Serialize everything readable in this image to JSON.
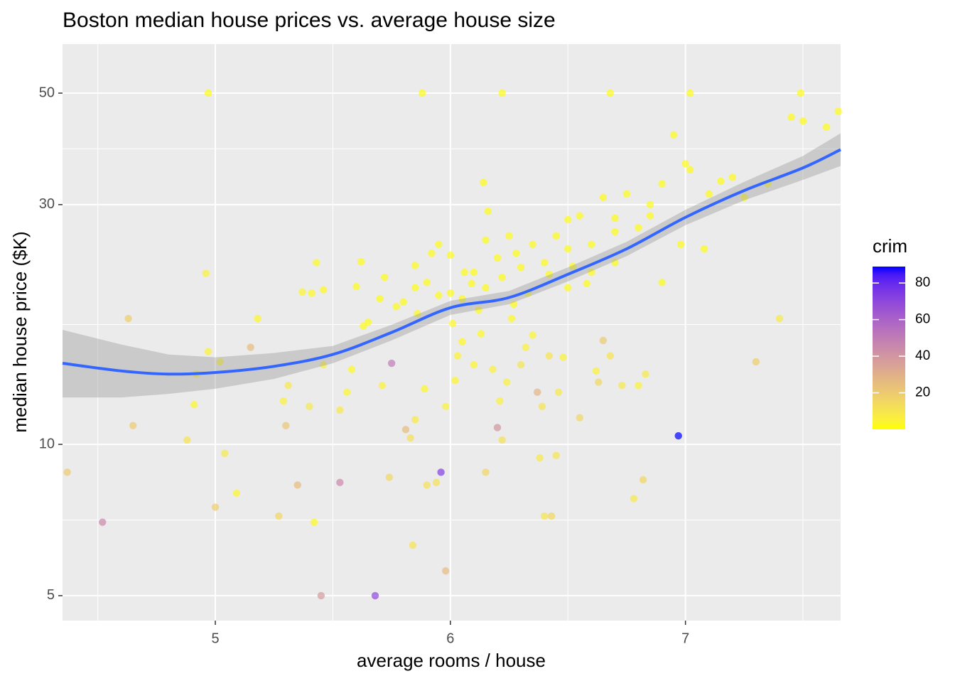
{
  "chart_data": {
    "type": "scatter",
    "title": "Boston median house prices vs. average house size",
    "x_label": "average rooms / house",
    "y_label": "median house price ($K)",
    "y_scale": "log",
    "xlim": [
      4.35,
      7.66
    ],
    "ylim": [
      4.46,
      62.6
    ],
    "xticks": [
      5,
      6,
      7
    ],
    "yticks": [
      5,
      10,
      30,
      50
    ],
    "grid": true,
    "x": [
      4.97,
      5.88,
      6.22,
      6.68,
      7.02,
      7.49,
      4.37,
      4.52,
      4.63,
      4.65,
      4.88,
      4.96,
      4.97,
      4.92,
      4.91,
      5.0,
      5.02,
      5.04,
      5.09,
      5.15,
      5.18,
      5.27,
      5.29,
      5.3,
      5.31,
      5.35,
      5.37,
      5.4,
      5.41,
      5.42,
      5.43,
      5.45,
      5.46,
      5.46,
      5.53,
      5.53,
      5.56,
      5.58,
      5.6,
      5.62,
      5.63,
      5.68,
      5.71,
      5.72,
      5.74,
      5.75,
      5.77,
      5.8,
      5.81,
      5.83,
      5.84,
      5.85,
      5.85,
      5.86,
      5.89,
      5.9,
      5.92,
      5.94,
      5.96,
      5.98,
      5.98,
      6.0,
      6.01,
      6.02,
      6.03,
      6.05,
      6.06,
      6.09,
      6.1,
      6.13,
      6.14,
      6.15,
      6.16,
      6.18,
      6.2,
      6.21,
      6.22,
      6.24,
      6.26,
      6.28,
      6.3,
      6.32,
      6.35,
      6.37,
      6.38,
      6.39,
      6.4,
      6.42,
      6.43,
      6.45,
      6.46,
      6.48,
      6.5,
      6.52,
      6.55,
      6.58,
      6.62,
      6.63,
      6.65,
      6.68,
      6.7,
      6.73,
      6.75,
      6.78,
      6.8,
      6.82,
      6.83,
      6.85,
      6.9,
      6.95,
      6.97,
      6.98,
      7.0,
      7.02,
      7.08,
      7.15,
      7.2,
      7.25,
      7.3,
      7.35,
      7.4,
      7.45,
      7.5,
      7.6,
      7.65,
      5.9,
      6.0,
      6.1,
      6.2,
      6.3,
      6.4,
      6.5,
      6.6,
      6.7,
      6.8,
      6.85,
      6.9,
      7.1,
      6.65,
      6.55,
      6.45,
      6.35,
      6.25,
      6.15,
      5.95,
      5.85,
      5.7,
      5.65,
      5.95,
      6.05,
      6.15,
      6.22,
      6.33,
      6.42,
      6.5,
      6.6,
      6.7,
      6.27,
      6.12
    ],
    "values": [
      50,
      50,
      50,
      50,
      50,
      50,
      8.8,
      7.0,
      17.8,
      10.9,
      10.2,
      21.9,
      15.3,
      13.8,
      12.0,
      7.5,
      14.6,
      9.6,
      8.0,
      15.6,
      17.8,
      7.2,
      12.2,
      10.9,
      13.1,
      8.3,
      20.1,
      11.9,
      20.0,
      7.0,
      23.0,
      5.0,
      20.3,
      14.4,
      8.4,
      11.7,
      12.7,
      14.1,
      20.6,
      23.1,
      17.2,
      5.0,
      13.1,
      21.5,
      8.6,
      14.5,
      18.8,
      19.2,
      10.7,
      10.3,
      6.3,
      11.2,
      22.7,
      18.2,
      12.9,
      8.3,
      24.0,
      8.4,
      8.8,
      5.6,
      11.9,
      23.8,
      17.4,
      13.4,
      15.0,
      16.0,
      22.0,
      20.9,
      14.4,
      16.6,
      33.2,
      8.8,
      29.1,
      14.1,
      10.8,
      12.2,
      10.2,
      13.3,
      17.8,
      24.0,
      14.4,
      15.6,
      16.5,
      12.7,
      9.4,
      11.9,
      7.2,
      15.0,
      7.2,
      9.5,
      12.7,
      14.9,
      28.0,
      22.6,
      11.3,
      20.9,
      14.0,
      13.3,
      16.1,
      15.0,
      28.2,
      13.1,
      31.5,
      7.8,
      13.1,
      8.5,
      13.8,
      28.5,
      21.0,
      41.3,
      10.4,
      25.0,
      36.2,
      35.2,
      24.5,
      33.4,
      34.0,
      31.0,
      14.6,
      33.0,
      17.8,
      44.8,
      44.0,
      42.8,
      46.0,
      21.0,
      20.0,
      22.0,
      23.5,
      22.5,
      23.0,
      24.5,
      25.0,
      26.5,
      27.0,
      30.0,
      33.0,
      31.5,
      31.0,
      28.5,
      26.0,
      25.0,
      26.0,
      25.5,
      25.0,
      20.5,
      19.5,
      17.5,
      19.8,
      19.5,
      20.5,
      21.5,
      20.0,
      21.8,
      20.5,
      22.0,
      23.0,
      19.0,
      18.5
    ],
    "color_values": [
      1,
      1,
      1,
      1,
      1,
      1,
      20,
      45,
      18,
      20,
      10,
      5,
      5,
      5,
      3,
      18,
      3,
      8,
      3,
      25,
      3,
      15,
      5,
      22,
      8,
      25,
      3,
      8,
      2,
      2,
      2,
      38,
      2,
      6,
      45,
      8,
      3,
      2,
      1,
      1,
      1,
      70,
      5,
      1,
      15,
      50,
      1,
      1,
      25,
      12,
      10,
      8,
      1,
      1,
      3,
      12,
      1,
      12,
      73,
      25,
      5,
      1,
      2,
      3,
      4,
      2,
      1,
      1,
      3,
      2,
      1,
      15,
      1,
      5,
      40,
      5,
      12,
      5,
      2,
      1,
      10,
      5,
      3,
      28,
      8,
      10,
      10,
      10,
      15,
      10,
      8,
      5,
      1,
      1,
      15,
      1,
      5,
      15,
      20,
      10,
      1,
      8,
      1,
      8,
      5,
      15,
      8,
      1,
      1,
      1,
      88.98,
      1,
      1,
      1,
      1,
      1,
      1,
      1,
      18,
      1,
      8,
      1,
      1,
      1,
      1,
      1,
      1,
      1,
      1,
      1,
      1,
      1,
      1,
      1,
      1,
      1,
      1,
      1,
      1,
      1,
      1,
      1,
      1,
      1,
      1,
      1,
      1,
      1,
      1,
      1,
      1,
      1,
      1,
      1,
      1,
      1,
      1,
      1,
      1
    ],
    "smooth": {
      "color": "#3366ff",
      "band_color": "#999999",
      "x": [
        4.35,
        4.6,
        4.8,
        5.0,
        5.25,
        5.5,
        5.75,
        6.0,
        6.25,
        6.5,
        6.75,
        7.0,
        7.25,
        7.5,
        7.66
      ],
      "values": [
        14.5,
        14.0,
        13.8,
        13.9,
        14.3,
        15.1,
        16.7,
        18.7,
        19.6,
        21.8,
        24.5,
        28.3,
        32.0,
        35.5,
        38.6
      ],
      "ymin": [
        12.4,
        12.4,
        12.6,
        12.9,
        13.5,
        14.5,
        16.1,
        18.1,
        19.0,
        21.1,
        23.7,
        27.3,
        30.6,
        33.6,
        35.8
      ],
      "ymax": [
        16.9,
        15.8,
        15.1,
        14.9,
        15.2,
        15.7,
        17.3,
        19.3,
        20.2,
        22.5,
        25.3,
        29.3,
        33.3,
        37.5,
        41.6
      ]
    },
    "color_legend": {
      "title": "crim",
      "lim": [
        0.006,
        88.98
      ],
      "ticks": [
        20,
        40,
        60,
        80
      ],
      "low": "#ffff00",
      "high": "#0000ff"
    }
  }
}
